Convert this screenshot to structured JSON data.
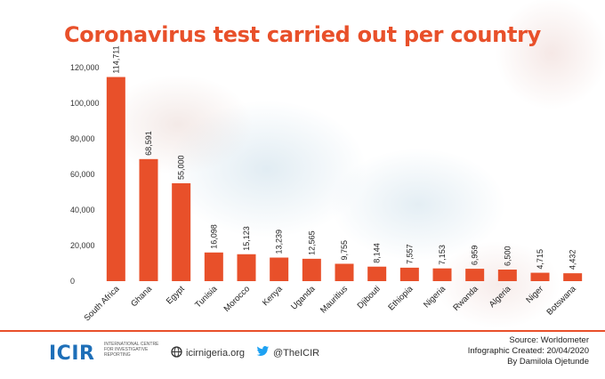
{
  "title": "Coronavirus test carried out per country",
  "chart_data": {
    "type": "bar",
    "title": "Coronavirus test carried out per country",
    "xlabel": "",
    "ylabel": "",
    "ylim": [
      0,
      120000
    ],
    "yticks": [
      "0",
      "20,000",
      "40,000",
      "60,000",
      "80,000",
      "100,000",
      "120,000"
    ],
    "ytick_values": [
      0,
      20000,
      40000,
      60000,
      80000,
      100000,
      120000
    ],
    "grid": false,
    "bar_color": "#e8502a",
    "categories": [
      "South Africa",
      "Ghana",
      "Egypt",
      "Tunisia",
      "Morocco",
      "Kenya",
      "Uganda",
      "Mauritius",
      "Djibouti",
      "Ethiopia",
      "Nigeria",
      "Rwanda",
      "Algeria",
      "Niger",
      "Botswana"
    ],
    "values": [
      114711,
      68591,
      55000,
      16098,
      15123,
      13239,
      12565,
      9755,
      8144,
      7557,
      7153,
      6959,
      6500,
      4715,
      4432
    ],
    "labels": [
      "114,711",
      "68,591",
      "55,000",
      "16,098",
      "15,123",
      "13,239",
      "12,565",
      "9,755",
      "8,144",
      "7,557",
      "7,153",
      "6,959",
      "6,500",
      "4,715",
      "4,432"
    ]
  },
  "footer": {
    "logo": "ICIR",
    "org_name": "International Centre for Investigative Reporting",
    "website": "icirnigeria.org",
    "twitter": "@TheICIR",
    "source": "Source: Worldometer",
    "created": "Infographic Created: 20/04/2020",
    "author": "By Damilola Ojetunde",
    "accent": "#e8502a",
    "brand": "#1e6fb8"
  }
}
